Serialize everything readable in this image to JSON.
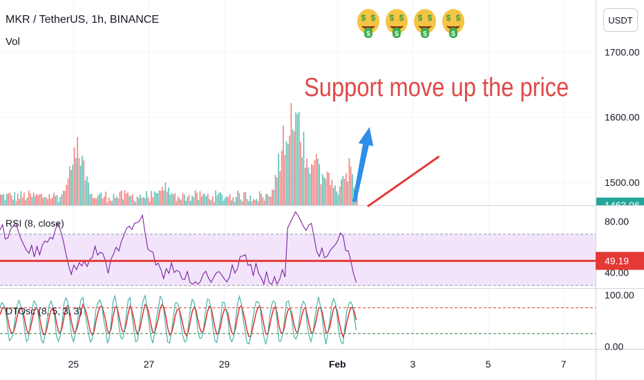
{
  "header": {
    "symbol": "MKR / TetherUS, 1h, BINANCE",
    "volume_label": "Vol",
    "currency": "USDT"
  },
  "annotation": {
    "text": "Support move up the price",
    "color": "#e04848"
  },
  "decorations": {
    "emoji_icons": [
      "money-mouth-face-icon",
      "money-mouth-face-icon",
      "money-mouth-face-icon",
      "money-mouth-face-icon"
    ]
  },
  "colors": {
    "up": "#26a69a",
    "down": "#ef5350",
    "rsi_line": "#7b1fa2",
    "rsi_band": "#f1e4fb",
    "oscillator_fast": "#26a69a",
    "oscillator_slow": "#e53935",
    "upper_level": "#e53935",
    "lower_level": "#2e7d32",
    "support_line": "#e53935",
    "arrow": "#2f8ee8",
    "price_badge": "#26a69a",
    "rsi_badge": "#e53935"
  },
  "chart_data": [
    {
      "type": "volume-bars",
      "pane": "price",
      "title": "MKR / TetherUS, 1h, BINANCE",
      "price_ticks": [
        "1700.00",
        "1600.00",
        "1500.00"
      ],
      "price_ticks_values": [
        1700,
        1600,
        1500
      ],
      "price_range": [
        1465,
        1780
      ],
      "last_price_label": "1463.06",
      "volume_range": [
        0,
        100
      ],
      "volume_pattern": {
        "baseline": 8,
        "spikes": [
          {
            "day": 25.1,
            "value": 55
          },
          {
            "day": 27.4,
            "value": 18
          },
          {
            "day": 30.6,
            "value": 70
          },
          {
            "day": 30.8,
            "value": 90
          },
          {
            "day": 30.9,
            "value": 82
          },
          {
            "day": 31.1,
            "value": 60
          },
          {
            "day": 31.4,
            "value": 42
          },
          {
            "day": 31.7,
            "value": 30
          },
          {
            "day": 32.3,
            "value": 36
          }
        ]
      }
    },
    {
      "type": "line",
      "pane": "rsi",
      "title": "RSI (8, close)",
      "ticks": [
        "80.00",
        "40.00"
      ],
      "ticks_values": [
        80,
        40
      ],
      "range": [
        28,
        92
      ],
      "upper_band": 70,
      "lower_band": 30,
      "last_value": "49.19",
      "marked_level": 49.19
    },
    {
      "type": "line",
      "pane": "oscillator",
      "title": "DTOsc (8, 5, 3, 3)",
      "ticks": [
        "100.00",
        "0.00"
      ],
      "ticks_values": [
        100,
        0
      ],
      "range": [
        -5,
        112
      ],
      "upper_level": 75,
      "lower_level": 25
    }
  ],
  "time_axis": {
    "labels": [
      "25",
      "27",
      "29",
      "Feb",
      "3",
      "5",
      "7"
    ],
    "label_days": [
      25,
      27,
      29,
      32,
      34,
      36,
      38
    ],
    "bold_label": "Feb",
    "day_range": [
      23.05,
      38.85
    ],
    "data_end_day": 32.55
  },
  "drawings": {
    "support_line": {
      "from": {
        "day": 32.8,
        "price": 1463
      },
      "to": {
        "day": 34.7,
        "price": 1540
      }
    },
    "arrow": {
      "from": {
        "day": 32.45,
        "price": 1470
      },
      "to": {
        "day": 32.85,
        "price": 1585
      }
    }
  }
}
